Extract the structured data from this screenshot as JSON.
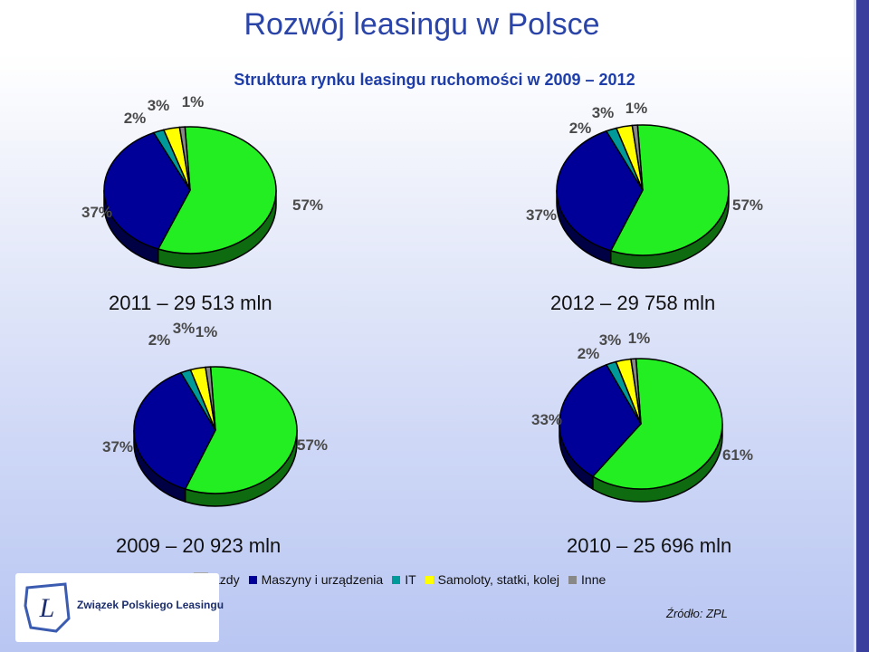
{
  "title": "Rozwój leasingu w Polsce",
  "subtitle": "Struktura rynku leasingu ruchomości w 2009 – 2012",
  "colors": {
    "pojazdy": "#22ee22",
    "maszyny": "#000099",
    "it": "#009999",
    "samoloty": "#ffff00",
    "inne": "#888888"
  },
  "legend": [
    {
      "label": "Pojazdy",
      "visible_text": "azdy",
      "color": "#22ee22"
    },
    {
      "label": "Maszyny i urządzenia",
      "visible_text": "Maszyny i urządzenia",
      "color": "#000099"
    },
    {
      "label": "IT",
      "visible_text": "IT",
      "color": "#009999"
    },
    {
      "label": "Samoloty, statki, kolej",
      "visible_text": "Samoloty, statki, kolej",
      "color": "#ffff00"
    },
    {
      "label": "Inne",
      "visible_text": "Inne",
      "color": "#888888"
    }
  ],
  "chart_data": [
    {
      "type": "pie",
      "caption": "2011 – 29 513 mln",
      "series": [
        {
          "values": [
            57,
            37,
            2,
            3,
            1
          ]
        }
      ],
      "labels": [
        "57%",
        "37%",
        "2%",
        "3%",
        "1%"
      ]
    },
    {
      "type": "pie",
      "caption": "2012 – 29 758 mln",
      "series": [
        {
          "values": [
            57,
            37,
            2,
            3,
            1
          ]
        }
      ],
      "labels": [
        "57%",
        "37%",
        "2%",
        "3%",
        "1%"
      ]
    },
    {
      "type": "pie",
      "caption": "2009 – 20 923 mln",
      "series": [
        {
          "values": [
            57,
            37,
            2,
            3,
            1
          ]
        }
      ],
      "labels": [
        "57%",
        "37%",
        "2%",
        "3%",
        "1%"
      ]
    },
    {
      "type": "pie",
      "caption": "2010 – 25 696 mln",
      "series": [
        {
          "values": [
            61,
            33,
            2,
            3,
            1
          ]
        }
      ],
      "labels": [
        "61%",
        "33%",
        "2%",
        "3%",
        "1%"
      ]
    }
  ],
  "logo": {
    "text": "Związek Polskiego Leasingu",
    "mark": "L"
  },
  "source": "Źródło: ZPL"
}
